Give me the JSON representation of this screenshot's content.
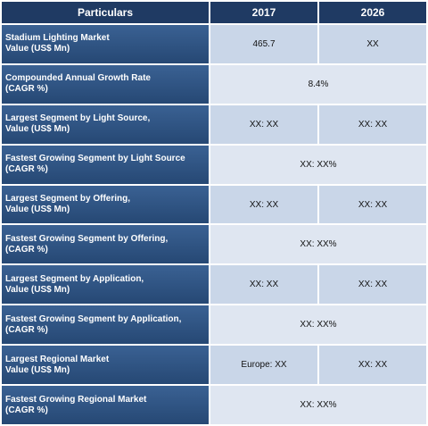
{
  "header": {
    "col1": "Particulars",
    "col2": "2017",
    "col3": "2026"
  },
  "rows": [
    {
      "label_line1": "Stadium Lighting Market",
      "label_line2": "Value (US$ Mn)",
      "v2017": "465.7",
      "v2026": "XX"
    },
    {
      "label_line1": "Compounded Annual Growth Rate",
      "label_line2": "(CAGR %)",
      "merged": "8.4%"
    },
    {
      "label_line1": "Largest Segment by Light Source,",
      "label_line2": "Value (US$ Mn)",
      "v2017": "XX: XX",
      "v2026": "XX:  XX"
    },
    {
      "label_line1": "Fastest Growing Segment by Light Source",
      "label_line2": "(CAGR %)",
      "merged": "XX:  XX%"
    },
    {
      "label_line1": "Largest Segment by Offering,",
      "label_line2": "Value (US$ Mn)",
      "v2017": "XX: XX",
      "v2026": "XX:  XX"
    },
    {
      "label_line1": "Fastest Growing Segment by Offering,",
      "label_line2": "(CAGR %)",
      "merged": "XX:  XX%"
    },
    {
      "label_line1": "Largest Segment by Application,",
      "label_line2": "Value (US$ Mn)",
      "v2017": "XX: XX",
      "v2026": "XX:  XX"
    },
    {
      "label_line1": "Fastest Growing Segment by Application,",
      "label_line2": "(CAGR %)",
      "merged": "XX:  XX%"
    },
    {
      "label_line1": "Largest Regional Market",
      "label_line2": "Value (US$ Mn)",
      "v2017": "Europe: XX",
      "v2026": "XX: XX"
    },
    {
      "label_line1": "Fastest Growing Regional Market",
      "label_line2": "(CAGR %)",
      "merged": "XX: XX%"
    }
  ]
}
